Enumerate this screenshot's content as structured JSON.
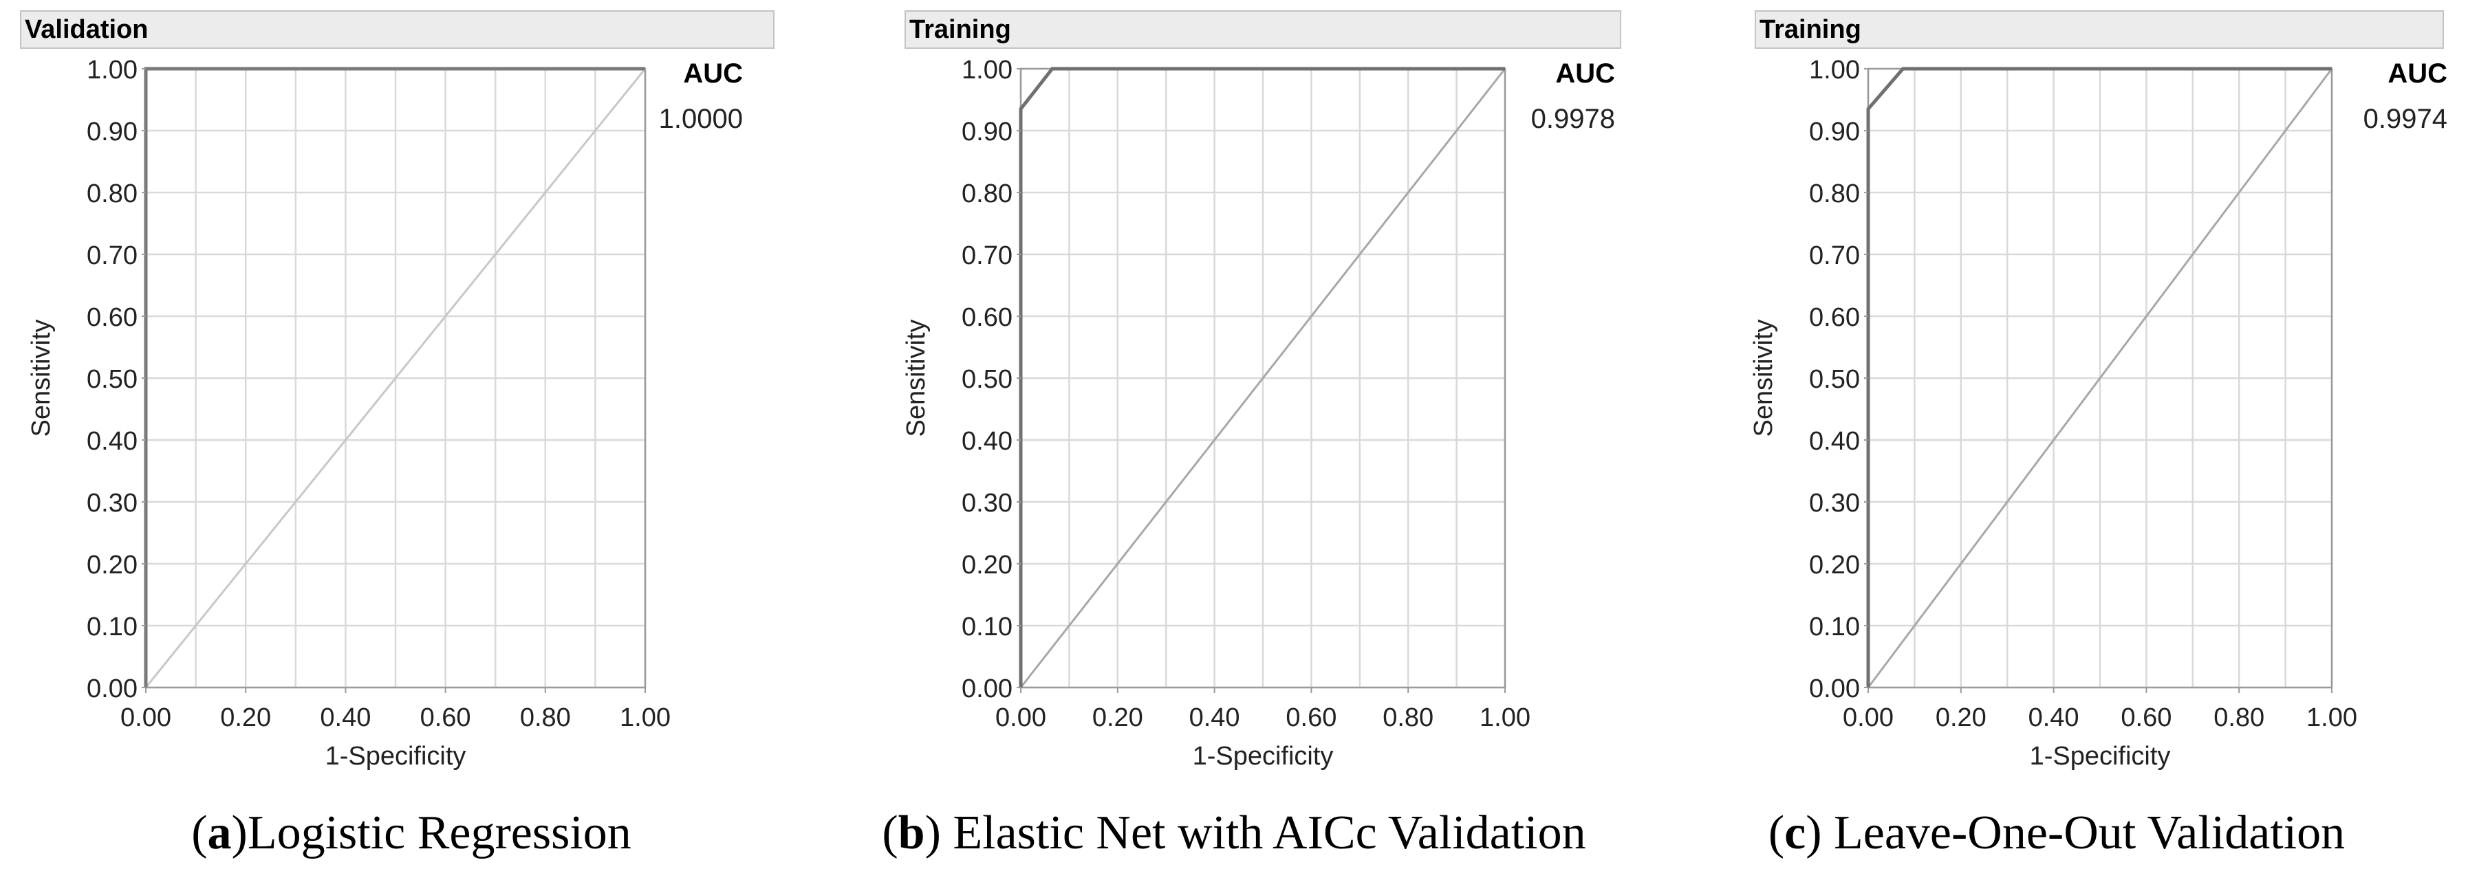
{
  "chart_data": [
    {
      "type": "line",
      "panel_title": "Validation",
      "xlabel": "1-Specificity",
      "ylabel": "Sensitivity",
      "xlim": [
        0,
        1
      ],
      "ylim": [
        0,
        1
      ],
      "xticks": [
        "0.00",
        "0.20",
        "0.40",
        "0.60",
        "0.80",
        "1.00"
      ],
      "yticks": [
        "0.00",
        "0.10",
        "0.20",
        "0.30",
        "0.40",
        "0.50",
        "0.60",
        "0.70",
        "0.80",
        "0.90",
        "1.00"
      ],
      "grid": true,
      "auc_label": "AUC",
      "auc_value": "1.0000",
      "reference_line": {
        "x": [
          0,
          1
        ],
        "y": [
          0,
          1
        ],
        "color": "#c8c8c8"
      },
      "series": [
        {
          "x": [
            0,
            0,
            1
          ],
          "y": [
            0,
            1,
            1
          ],
          "color": "#7a7a7a"
        }
      ],
      "caption": {
        "letter": "a",
        "prefix": "(",
        "suffix": ")",
        "text": "Logistic Regression"
      }
    },
    {
      "type": "line",
      "panel_title": "Training",
      "xlabel": "1-Specificity",
      "ylabel": "Sensitivity",
      "xlim": [
        0,
        1
      ],
      "ylim": [
        0,
        1
      ],
      "xticks": [
        "0.00",
        "0.20",
        "0.40",
        "0.60",
        "0.80",
        "1.00"
      ],
      "yticks": [
        "0.00",
        "0.10",
        "0.20",
        "0.30",
        "0.40",
        "0.50",
        "0.60",
        "0.70",
        "0.80",
        "0.90",
        "1.00"
      ],
      "grid": true,
      "auc_label": "AUC",
      "auc_value": "0.9978",
      "reference_line": {
        "x": [
          0,
          1
        ],
        "y": [
          0,
          1
        ],
        "color": "#a8a8a8"
      },
      "series": [
        {
          "x": [
            0,
            0,
            0.065,
            1
          ],
          "y": [
            0,
            0.935,
            1,
            1
          ],
          "color": "#707070"
        }
      ],
      "caption": {
        "letter": "b",
        "prefix": "(",
        "suffix": ")",
        "text": " Elastic Net with AICc Validation"
      }
    },
    {
      "type": "line",
      "panel_title": "Training",
      "xlabel": "1-Specificity",
      "ylabel": "Sensitivity",
      "xlim": [
        0,
        1
      ],
      "ylim": [
        0,
        1
      ],
      "xticks": [
        "0.00",
        "0.20",
        "0.40",
        "0.60",
        "0.80",
        "1.00"
      ],
      "yticks": [
        "0.00",
        "0.10",
        "0.20",
        "0.30",
        "0.40",
        "0.50",
        "0.60",
        "0.70",
        "0.80",
        "0.90",
        "1.00"
      ],
      "grid": true,
      "auc_label": "AUC",
      "auc_value": "0.9974",
      "reference_line": {
        "x": [
          0,
          1
        ],
        "y": [
          0,
          1
        ],
        "color": "#a8a8a8"
      },
      "series": [
        {
          "x": [
            0,
            0,
            0.075,
            1
          ],
          "y": [
            0,
            0.935,
            1,
            1
          ],
          "color": "#707070"
        }
      ],
      "caption": {
        "letter": "c",
        "prefix": "(",
        "suffix": ")",
        "text": " Leave-One-Out Validation"
      }
    }
  ]
}
